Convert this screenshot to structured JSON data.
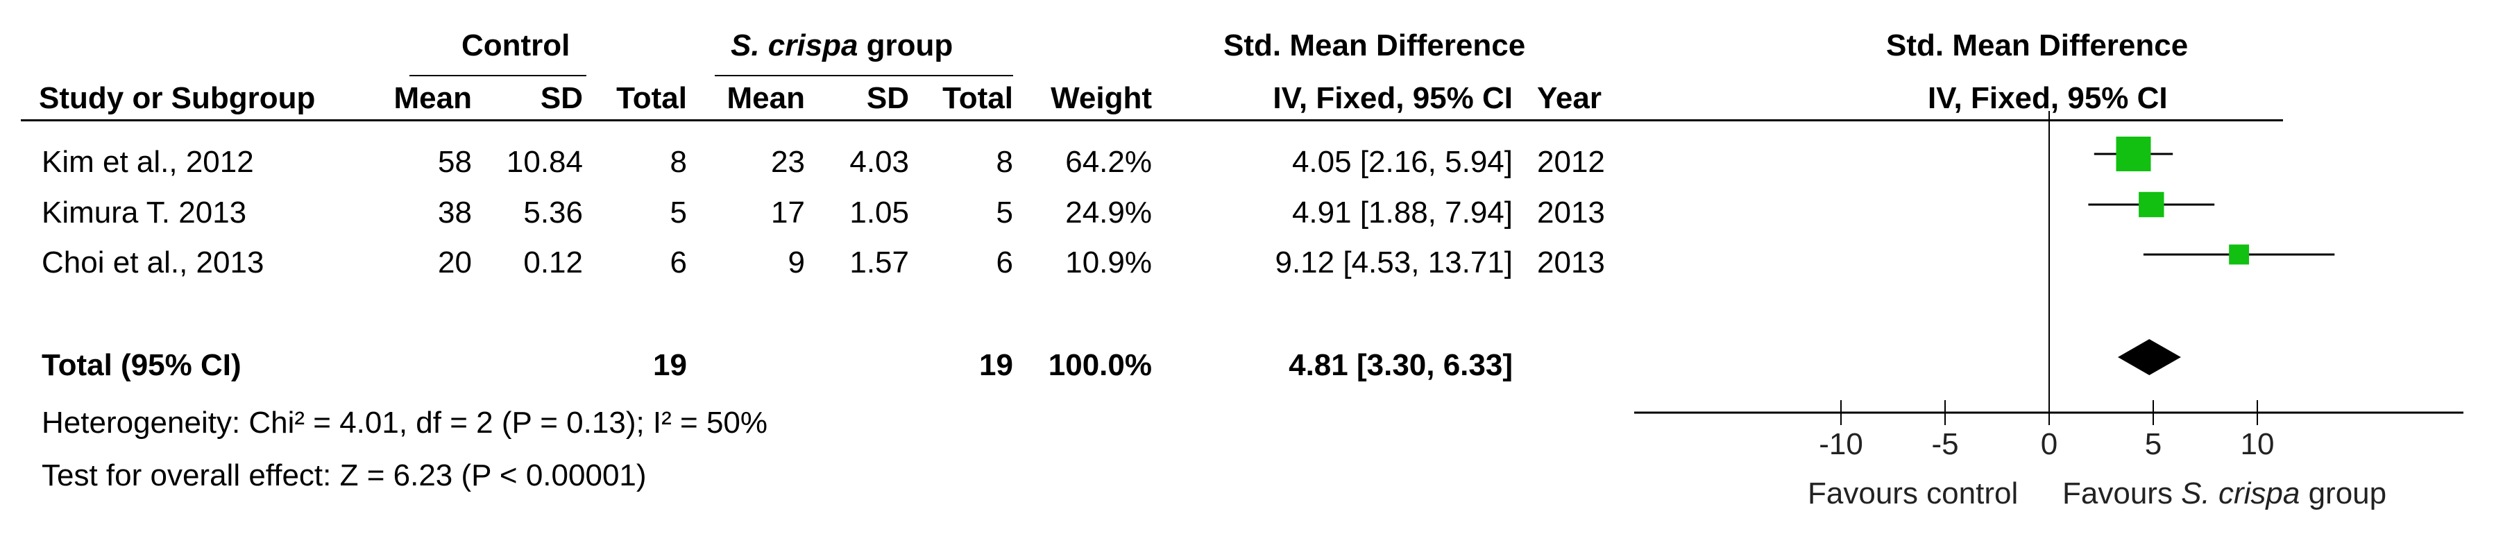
{
  "header": {
    "control_group": "Control",
    "treat_group_italic": "S. crispa",
    "treat_group_rest": " group",
    "smd_title": "Std. Mean Difference",
    "columns": {
      "study": "Study or Subgroup",
      "mean_c": "Mean",
      "sd_c": "SD",
      "total_c": "Total",
      "mean_t": "Mean",
      "sd_t": "SD",
      "total_t": "Total",
      "weight": "Weight",
      "ci": "IV, Fixed, 95% CI",
      "year": "Year"
    },
    "plot_title": "Std. Mean Difference",
    "plot_subtitle": "IV, Fixed, 95% CI"
  },
  "rows": [
    {
      "study": "Kim et al., 2012",
      "mean_c": "58",
      "sd_c": "10.84",
      "total_c": "8",
      "mean_t": "23",
      "sd_t": "4.03",
      "total_t": "8",
      "weight": "64.2%",
      "ci": "4.05 [2.16, 5.94]",
      "year": "2012"
    },
    {
      "study": "Kimura T. 2013",
      "mean_c": "38",
      "sd_c": "5.36",
      "total_c": "5",
      "mean_t": "17",
      "sd_t": "1.05",
      "total_t": "5",
      "weight": "24.9%",
      "ci": "4.91 [1.88, 7.94]",
      "year": "2013"
    },
    {
      "study": "Choi et al., 2013",
      "mean_c": "20",
      "sd_c": "0.12",
      "total_c": "6",
      "mean_t": "9",
      "sd_t": "1.57",
      "total_t": "6",
      "weight": "10.9%",
      "ci": "9.12 [4.53, 13.71]",
      "year": "2013"
    }
  ],
  "total": {
    "label": "Total (95% CI)",
    "total_c": "19",
    "total_t": "19",
    "weight": "100.0%",
    "ci": "4.81 [3.30, 6.33]"
  },
  "footer": {
    "heterogeneity": "Heterogeneity: Chi² = 4.01, df = 2 (P = 0.13); I² = 50%",
    "overall": "Test for overall effect: Z = 6.23 (P < 0.00001)"
  },
  "axis_labels": {
    "favours_left": "Favours control",
    "favours_right_prefix": "Favours ",
    "favours_right_italic": "S. crispa",
    "favours_right_suffix": " group"
  },
  "chart_data": {
    "type": "forest",
    "xlim": [
      -20,
      20
    ],
    "xticks": [
      -10,
      -5,
      0,
      5,
      10
    ],
    "colors": {
      "study_marker": "#11c011",
      "summary_marker": "#000000",
      "line": "#000000"
    },
    "studies": [
      {
        "name": "Kim et al., 2012",
        "estimate": 4.05,
        "lower": 2.16,
        "upper": 5.94,
        "weight": 64.2
      },
      {
        "name": "Kimura T. 2013",
        "estimate": 4.91,
        "lower": 1.88,
        "upper": 7.94,
        "weight": 24.9
      },
      {
        "name": "Choi et al., 2013",
        "estimate": 9.12,
        "lower": 4.53,
        "upper": 13.71,
        "weight": 10.9
      }
    ],
    "summary": {
      "estimate": 4.81,
      "lower": 3.3,
      "upper": 6.33
    }
  }
}
